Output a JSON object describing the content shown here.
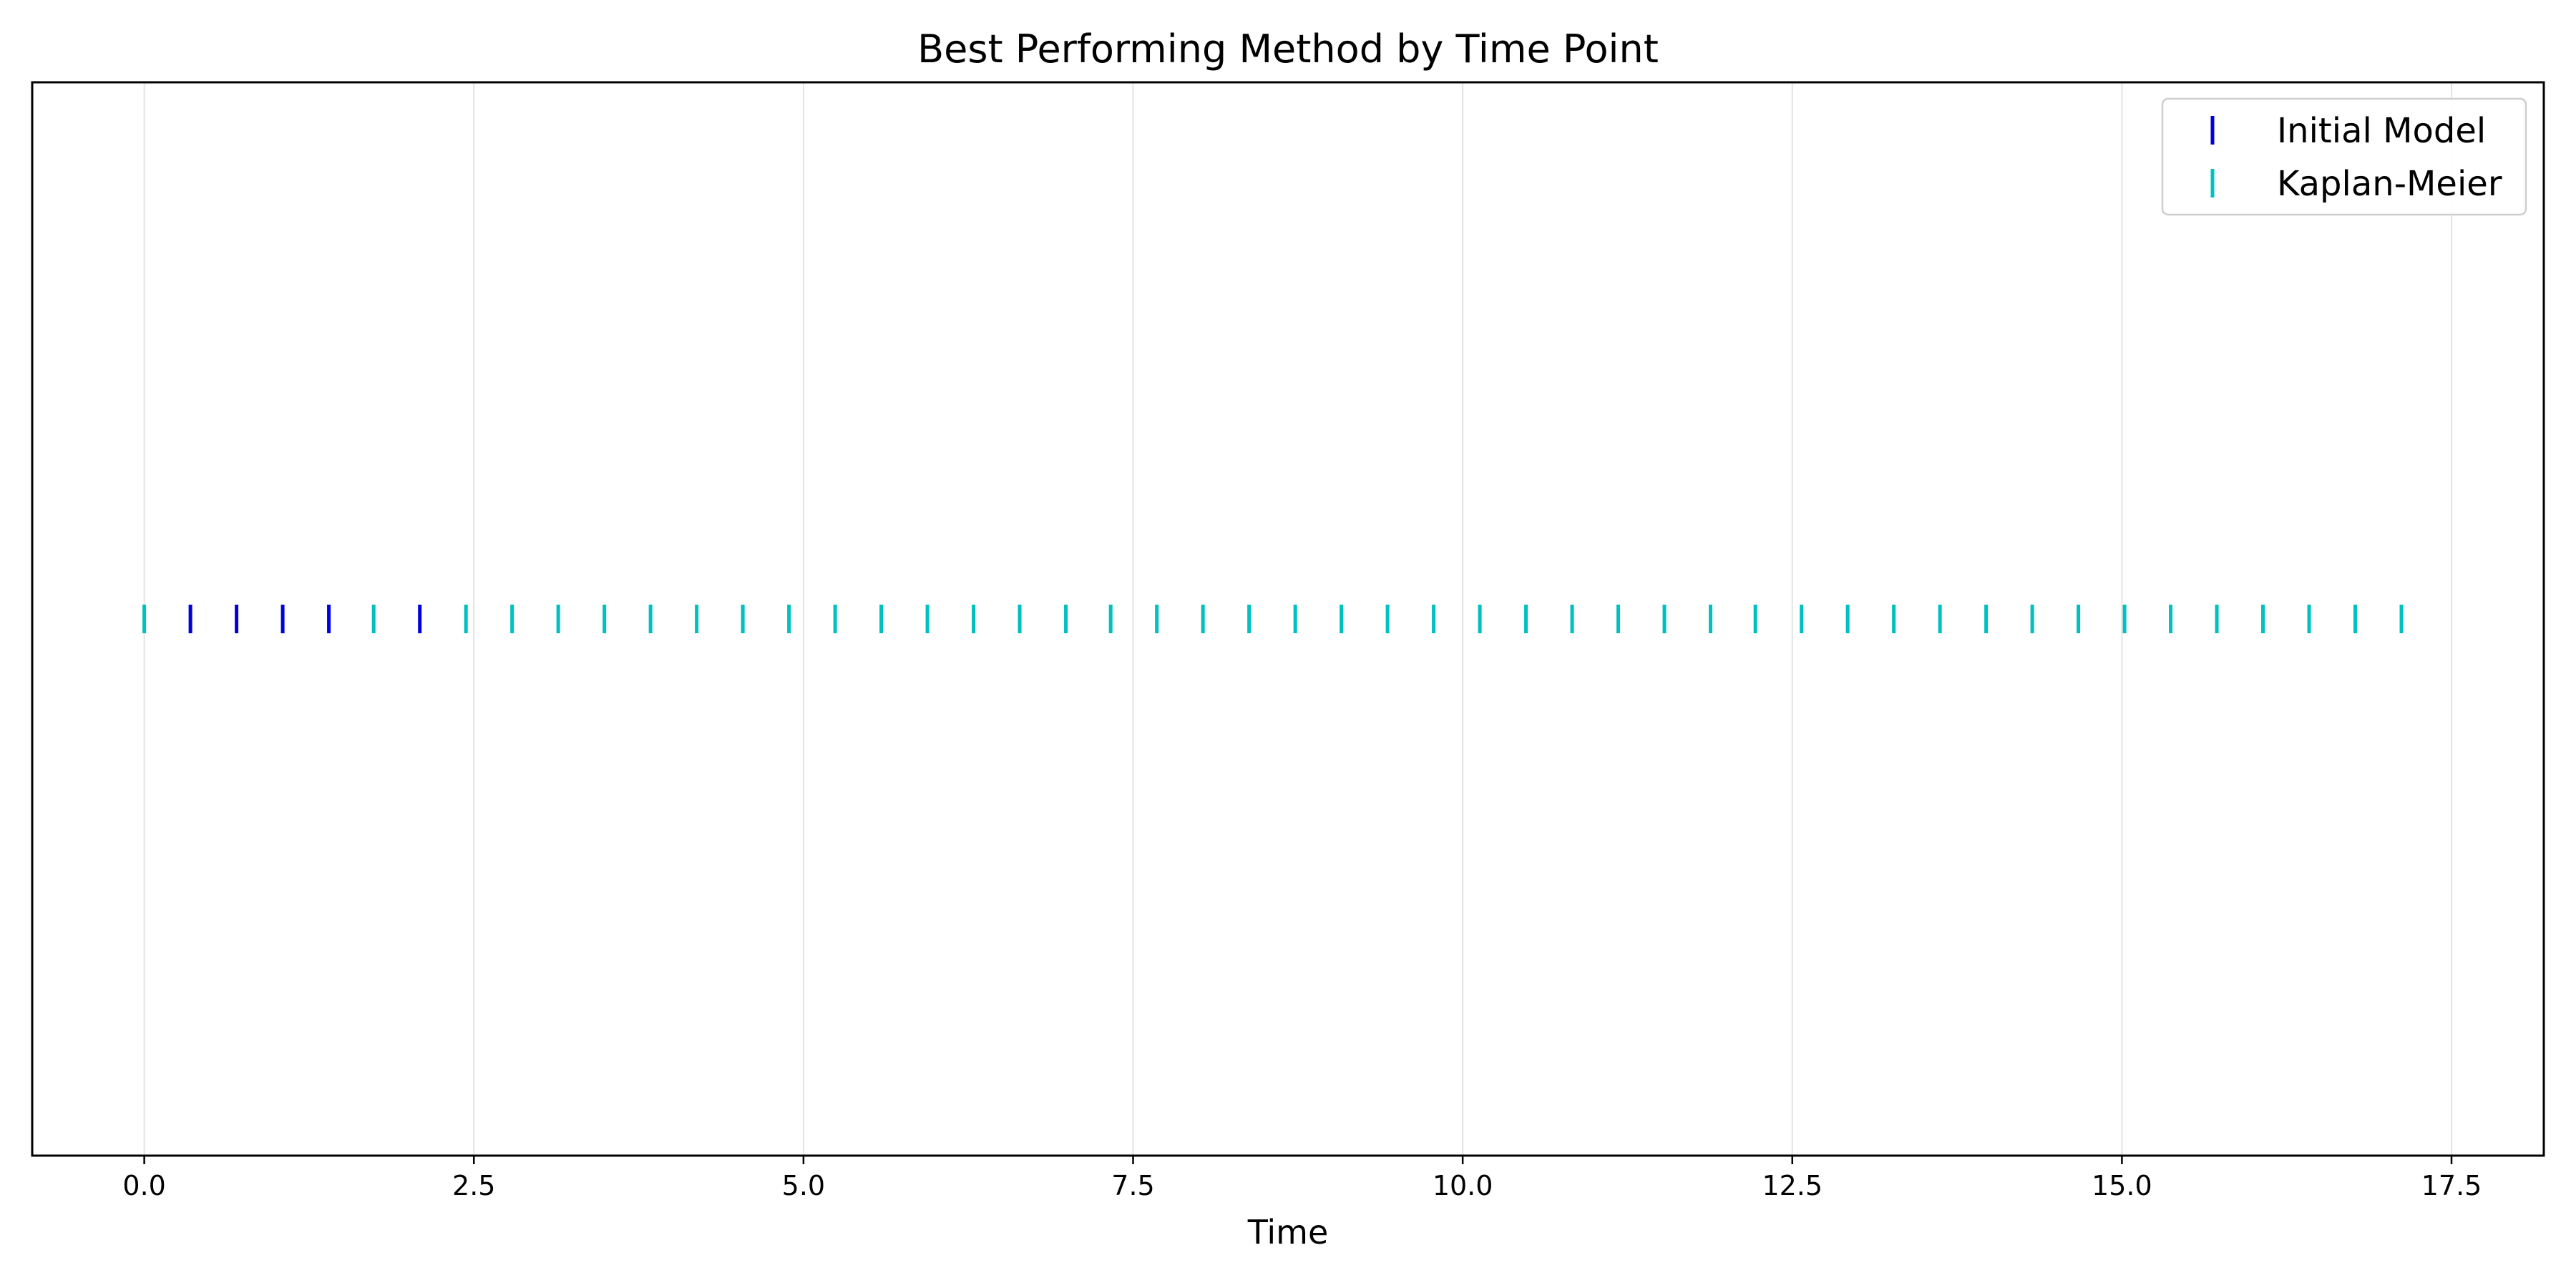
{
  "chart_data": {
    "type": "scatter",
    "title": "Best Performing Method by Time Point",
    "xlabel": "Time",
    "ylabel": "",
    "xlim": [
      -0.85,
      18.2
    ],
    "ylim": [
      -1,
      1
    ],
    "xticks": [
      0.0,
      2.5,
      5.0,
      7.5,
      10.0,
      12.5,
      15.0,
      17.5
    ],
    "xtick_labels": [
      "0.0",
      "2.5",
      "5.0",
      "7.5",
      "10.0",
      "12.5",
      "15.0",
      "17.5"
    ],
    "grid": true,
    "legend_position": "top-right",
    "marker": "vertical-line",
    "series": [
      {
        "name": "Initial Model",
        "color": "#0000e0",
        "x": [
          0.35,
          0.7,
          1.05,
          1.4,
          2.09
        ],
        "y": [
          0,
          0,
          0,
          0,
          0
        ]
      },
      {
        "name": "Kaplan-Meier",
        "color": "#00c0c0",
        "x": [
          0.0,
          1.74,
          2.44,
          2.79,
          3.14,
          3.49,
          3.84,
          4.19,
          4.54,
          4.89,
          5.24,
          5.59,
          5.94,
          6.29,
          6.64,
          6.99,
          7.33,
          7.68,
          8.03,
          8.38,
          8.73,
          9.08,
          9.43,
          9.78,
          10.13,
          10.48,
          10.83,
          11.18,
          11.53,
          11.88,
          12.22,
          12.57,
          12.92,
          13.27,
          13.62,
          13.97,
          14.32,
          14.67,
          15.02,
          15.37,
          15.72,
          16.07,
          16.42,
          16.77,
          17.12
        ],
        "y": [
          0,
          0,
          0,
          0,
          0,
          0,
          0,
          0,
          0,
          0,
          0,
          0,
          0,
          0,
          0,
          0,
          0,
          0,
          0,
          0,
          0,
          0,
          0,
          0,
          0,
          0,
          0,
          0,
          0,
          0,
          0,
          0,
          0,
          0,
          0,
          0,
          0,
          0,
          0,
          0,
          0,
          0,
          0,
          0,
          0
        ]
      }
    ]
  }
}
